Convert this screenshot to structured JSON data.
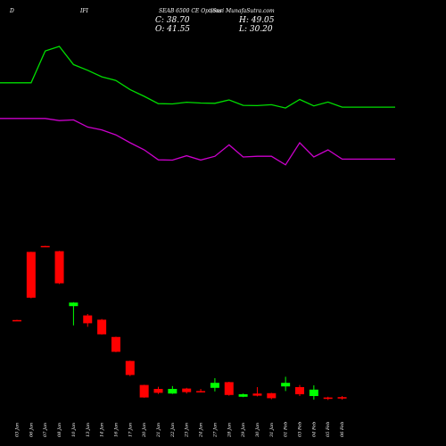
{
  "header": {
    "symbol": "D",
    "segment": "IFI",
    "contract": "SEAB 6500 CE Options",
    "source": "(Suri MunafaSutra.com"
  },
  "ohlc": {
    "close_label": "C: 38.70",
    "high_label": "H: 49.05",
    "open_label": "O: 41.55",
    "low_label": "L: 30.20"
  },
  "colors": {
    "background": "#000000",
    "up": "#00ff00",
    "down": "#ff0000",
    "line_green": "#00dd00",
    "line_magenta": "#cc00cc"
  },
  "chart_data": {
    "type": "candlestick",
    "x": [
      "03 Jan",
      "06 Jan",
      "07 Jan",
      "08 Jan",
      "10 Jan",
      "13 Jan",
      "14 Jan",
      "16 Jan",
      "17 Jan",
      "20 Jan",
      "21 Jan",
      "22 Jan",
      "23 Jan",
      "24 Jan",
      "27 Jan",
      "28 Jan",
      "29 Jan",
      "30 Jan",
      "31 Jan",
      "01 Feb",
      "03 Feb",
      "04 Feb",
      "05 Feb",
      "06 Feb"
    ],
    "candles": [
      {
        "open": 41.5,
        "high": 41.8,
        "low": 40.6,
        "close": 40.8
      },
      {
        "open": 137.0,
        "high": 137.2,
        "low": 72.0,
        "close": 72.8
      },
      {
        "open": 145.3,
        "high": 145.5,
        "low": 144.6,
        "close": 144.8
      },
      {
        "open": 138.0,
        "high": 138.4,
        "low": 92.0,
        "close": 93.0
      },
      {
        "open": 61.0,
        "high": 66.5,
        "low": 34.0,
        "close": 66.0
      },
      {
        "open": 48.0,
        "high": 50.0,
        "low": 32.0,
        "close": 37.0
      },
      {
        "open": 42.0,
        "high": 43.0,
        "low": 21.0,
        "close": 21.5
      },
      {
        "open": 17.8,
        "high": 18.2,
        "low": -3.5,
        "close": -3.0
      },
      {
        "open": -15.8,
        "high": -15.4,
        "low": -37.0,
        "close": -35.5
      },
      {
        "open": -49.5,
        "high": -49.2,
        "low": -67.3,
        "close": -67.0
      },
      {
        "open": -55.0,
        "high": -52.0,
        "low": -62.0,
        "close": -60.5
      },
      {
        "open": -61.5,
        "high": -51.0,
        "low": -62.0,
        "close": -55.0
      },
      {
        "open": -54.5,
        "high": -53.5,
        "low": -61.5,
        "close": -59.5
      },
      {
        "open": -58.0,
        "high": -55.0,
        "low": -60.0,
        "close": -59.0
      },
      {
        "open": -53.5,
        "high": -40.0,
        "low": -58.5,
        "close": -46.5
      },
      {
        "open": -45.5,
        "high": -45.0,
        "low": -64.5,
        "close": -63.5
      },
      {
        "open": -66.0,
        "high": -61.5,
        "low": -66.5,
        "close": -62.5
      },
      {
        "open": -61.5,
        "high": -52.5,
        "low": -65.5,
        "close": -64.5
      },
      {
        "open": -61.0,
        "high": -60.5,
        "low": -69.5,
        "close": -68.0
      },
      {
        "open": -51.5,
        "high": -38.0,
        "low": -58.0,
        "close": -46.5
      },
      {
        "open": -52.5,
        "high": -49.5,
        "low": -65.0,
        "close": -62.5
      },
      {
        "open": -65.0,
        "high": -50.0,
        "low": -70.0,
        "close": -56.0
      },
      {
        "open": -67.0,
        "high": -66.0,
        "low": -70.5,
        "close": -69.0
      },
      {
        "open": -66.5,
        "high": -65.0,
        "low": -70.0,
        "close": -68.5
      }
    ],
    "series": [
      {
        "values": [
          374.0,
          374.0,
          418.6,
          425.0,
          399.5,
          391.5,
          382.4,
          377.3,
          364.5,
          355.0,
          344.8,
          344.4,
          346.8,
          345.6,
          345.2,
          350.0,
          342.4,
          342.0,
          343.2,
          338.6,
          350.6,
          341.6,
          347.0,
          339.9
        ]
      },
      {
        "values": [
          324.0,
          324.0,
          324.0,
          321.0,
          322.0,
          312.0,
          308.0,
          301.0,
          290.0,
          280.0,
          266.0,
          265.6,
          271.8,
          265.8,
          271.0,
          287.0,
          270.0,
          271.0,
          271.0,
          259.0,
          290.0,
          270.0,
          280.0,
          267.0
        ]
      }
    ],
    "ylim": [
      -85,
      440
    ]
  }
}
